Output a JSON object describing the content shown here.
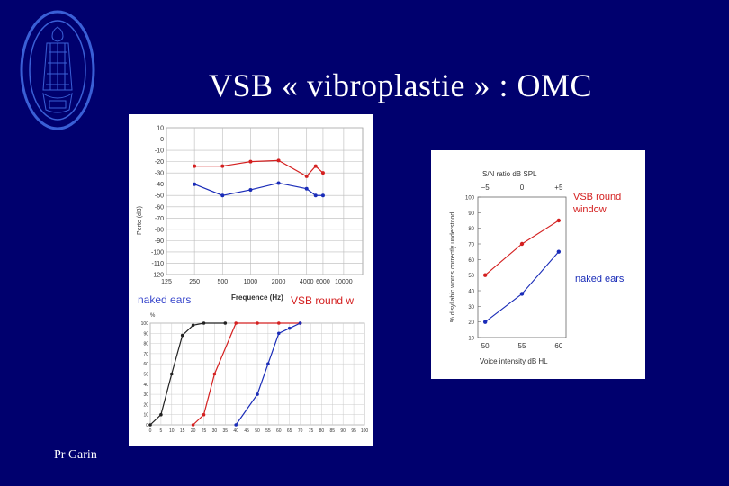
{
  "slide": {
    "title": "VSB « vibroplastie » : OMC",
    "author": "Pr Garin"
  },
  "colors": {
    "background": "#00006e",
    "red_series": "#d42020",
    "blue_series": "#1a2cb8",
    "black_series": "#222222",
    "seal": "#3a5fd6"
  },
  "chart_data": [
    {
      "type": "line",
      "ylabel": "Perte (dB)",
      "xlabel": "Frequence (Hz)",
      "x": [
        125,
        250,
        500,
        1000,
        2000,
        4000,
        6000,
        10000
      ],
      "x_tick_labels": [
        "125",
        "250",
        "500",
        "1000",
        "2000",
        "4000",
        "6000",
        "10000"
      ],
      "y_ticks": [
        10,
        0,
        -10,
        -20,
        -30,
        -40,
        -50,
        -60,
        -70,
        -80,
        -90,
        -100,
        -110,
        -120
      ],
      "y_tick_labels": [
        "10",
        "0",
        "-10",
        "-20",
        "-30",
        "-40",
        "-50",
        "-60",
        "-70",
        "-80",
        "-90",
        "-100",
        "-110",
        "-120"
      ],
      "ylim": [
        -120,
        10
      ],
      "grid": true,
      "series": [
        {
          "name": "VSB round w",
          "color": "#d42020",
          "points": [
            [
              250,
              -24
            ],
            [
              500,
              -24
            ],
            [
              1000,
              -20
            ],
            [
              2000,
              -19
            ],
            [
              4000,
              -33
            ],
            [
              5000,
              -24
            ],
            [
              6000,
              -30
            ]
          ]
        },
        {
          "name": "naked ears",
          "color": "#1a2cb8",
          "points": [
            [
              250,
              -40
            ],
            [
              500,
              -50
            ],
            [
              1000,
              -45
            ],
            [
              2000,
              -39
            ],
            [
              4000,
              -44
            ],
            [
              5000,
              -50
            ],
            [
              6000,
              -50
            ]
          ]
        }
      ]
    },
    {
      "type": "line",
      "ylabel": "%",
      "x_tick_labels": [
        "0",
        "5",
        "10",
        "15",
        "20",
        "25",
        "30",
        "35",
        "40",
        "45",
        "50",
        "55",
        "60",
        "65",
        "70",
        "75",
        "80",
        "85",
        "90",
        "95",
        "100"
      ],
      "y_tick_labels": [
        "100",
        "90",
        "80",
        "70",
        "60",
        "50",
        "40",
        "30",
        "20",
        "10",
        "0"
      ],
      "xlim": [
        0,
        100
      ],
      "ylim": [
        0,
        100
      ],
      "grid": true,
      "series": [
        {
          "color": "#222222",
          "points": [
            [
              0,
              0
            ],
            [
              5,
              10
            ],
            [
              10,
              50
            ],
            [
              15,
              88
            ],
            [
              20,
              98
            ],
            [
              25,
              100
            ],
            [
              35,
              100
            ]
          ]
        },
        {
          "color": "#d42020",
          "points": [
            [
              20,
              0
            ],
            [
              25,
              10
            ],
            [
              30,
              50
            ],
            [
              40,
              100
            ],
            [
              50,
              100
            ],
            [
              60,
              100
            ],
            [
              70,
              100
            ]
          ]
        },
        {
          "color": "#1a2cb8",
          "points": [
            [
              40,
              0
            ],
            [
              50,
              30
            ],
            [
              55,
              60
            ],
            [
              60,
              90
            ],
            [
              65,
              95
            ],
            [
              70,
              100
            ]
          ]
        }
      ]
    },
    {
      "type": "line",
      "title": "S/N ratio   dB SPL",
      "top_tick_labels": [
        "−5",
        "0",
        "+5"
      ],
      "ylabel": "% disyllabic words correctly understood",
      "xlabel": "Voice intensity   dB HL",
      "x": [
        50,
        55,
        60
      ],
      "x_tick_labels": [
        "50",
        "55",
        "60"
      ],
      "y_tick_labels": [
        "100",
        "90",
        "80",
        "70",
        "60",
        "50",
        "40",
        "30",
        "20",
        "10"
      ],
      "ylim": [
        10,
        100
      ],
      "xlim": [
        49,
        61
      ],
      "series": [
        {
          "name": "VSB round window",
          "color": "#d42020",
          "values": [
            50,
            70,
            85
          ]
        },
        {
          "name": "naked ears",
          "color": "#1a2cb8",
          "values": [
            20,
            38,
            65
          ]
        }
      ]
    }
  ]
}
